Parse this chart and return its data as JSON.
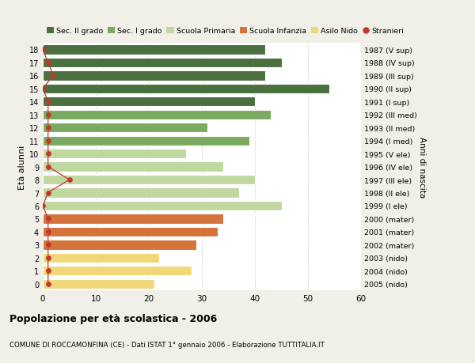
{
  "ages": [
    18,
    17,
    16,
    15,
    14,
    13,
    12,
    11,
    10,
    9,
    8,
    7,
    6,
    5,
    4,
    3,
    2,
    1,
    0
  ],
  "years": [
    "1987 (V sup)",
    "1988 (IV sup)",
    "1989 (III sup)",
    "1990 (II sup)",
    "1991 (I sup)",
    "1992 (III med)",
    "1993 (II med)",
    "1994 (I med)",
    "1995 (V ele)",
    "1996 (IV ele)",
    "1997 (III ele)",
    "1998 (II ele)",
    "1999 (I ele)",
    "2000 (mater)",
    "2001 (mater)",
    "2002 (mater)",
    "2003 (nido)",
    "2004 (nido)",
    "2005 (nido)"
  ],
  "values": [
    42,
    45,
    42,
    54,
    40,
    43,
    31,
    39,
    27,
    34,
    40,
    37,
    45,
    34,
    33,
    29,
    22,
    28,
    21
  ],
  "stranieri": [
    0,
    1,
    2,
    0,
    1,
    1,
    1,
    1,
    1,
    1,
    5,
    1,
    0,
    1,
    1,
    1,
    1,
    1,
    1
  ],
  "bar_colors": [
    "#4a7040",
    "#4a7040",
    "#4a7040",
    "#4a7040",
    "#4a7040",
    "#7aaa60",
    "#7aaa60",
    "#7aaa60",
    "#c0d8a0",
    "#c0d8a0",
    "#c0d8a0",
    "#c0d8a0",
    "#c0d8a0",
    "#d4733a",
    "#d4733a",
    "#d4733a",
    "#f0d878",
    "#f0d878",
    "#f0d878"
  ],
  "legend_labels": [
    "Sec. II grado",
    "Sec. I grado",
    "Scuola Primaria",
    "Scuola Infanzia",
    "Asilo Nido",
    "Stranieri"
  ],
  "legend_colors": [
    "#4a7040",
    "#7aaa60",
    "#c0d8a0",
    "#d4733a",
    "#f0d878",
    "#c0392b"
  ],
  "stranieri_color": "#c0392b",
  "title_bold": "Popolazione per età scolastica - 2006",
  "subtitle": "COMUNE DI ROCCAMONFINA (CE) - Dati ISTAT 1° gennaio 2006 - Elaborazione TUTTITALIA.IT",
  "ylabel": "Età alunni",
  "ylabel2": "Anni di nascita",
  "xlim": [
    0,
    60
  ],
  "xticks": [
    0,
    10,
    20,
    30,
    40,
    50,
    60
  ],
  "bg_color": "#f0f0e8",
  "plot_bg_color": "#ffffff"
}
